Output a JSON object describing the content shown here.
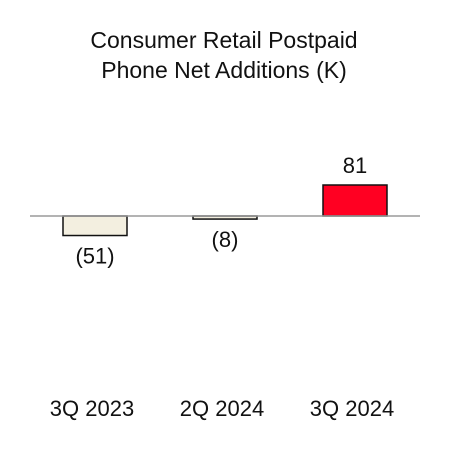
{
  "chart_data": {
    "type": "bar",
    "title_lines": [
      "Consumer Retail Postpaid",
      "Phone Net Additions (K)"
    ],
    "categories": [
      "3Q 2023",
      "2Q 2024",
      "3Q 2024"
    ],
    "values": [
      -51,
      -8,
      81
    ],
    "value_labels": [
      "(51)",
      "(8)",
      "81"
    ],
    "colors": [
      "#f3efe0",
      "#f3efe0",
      "#ff0022"
    ],
    "edge_color": "#111111",
    "baseline_color": "#9a9a9a",
    "grid": false,
    "legend": "none"
  }
}
